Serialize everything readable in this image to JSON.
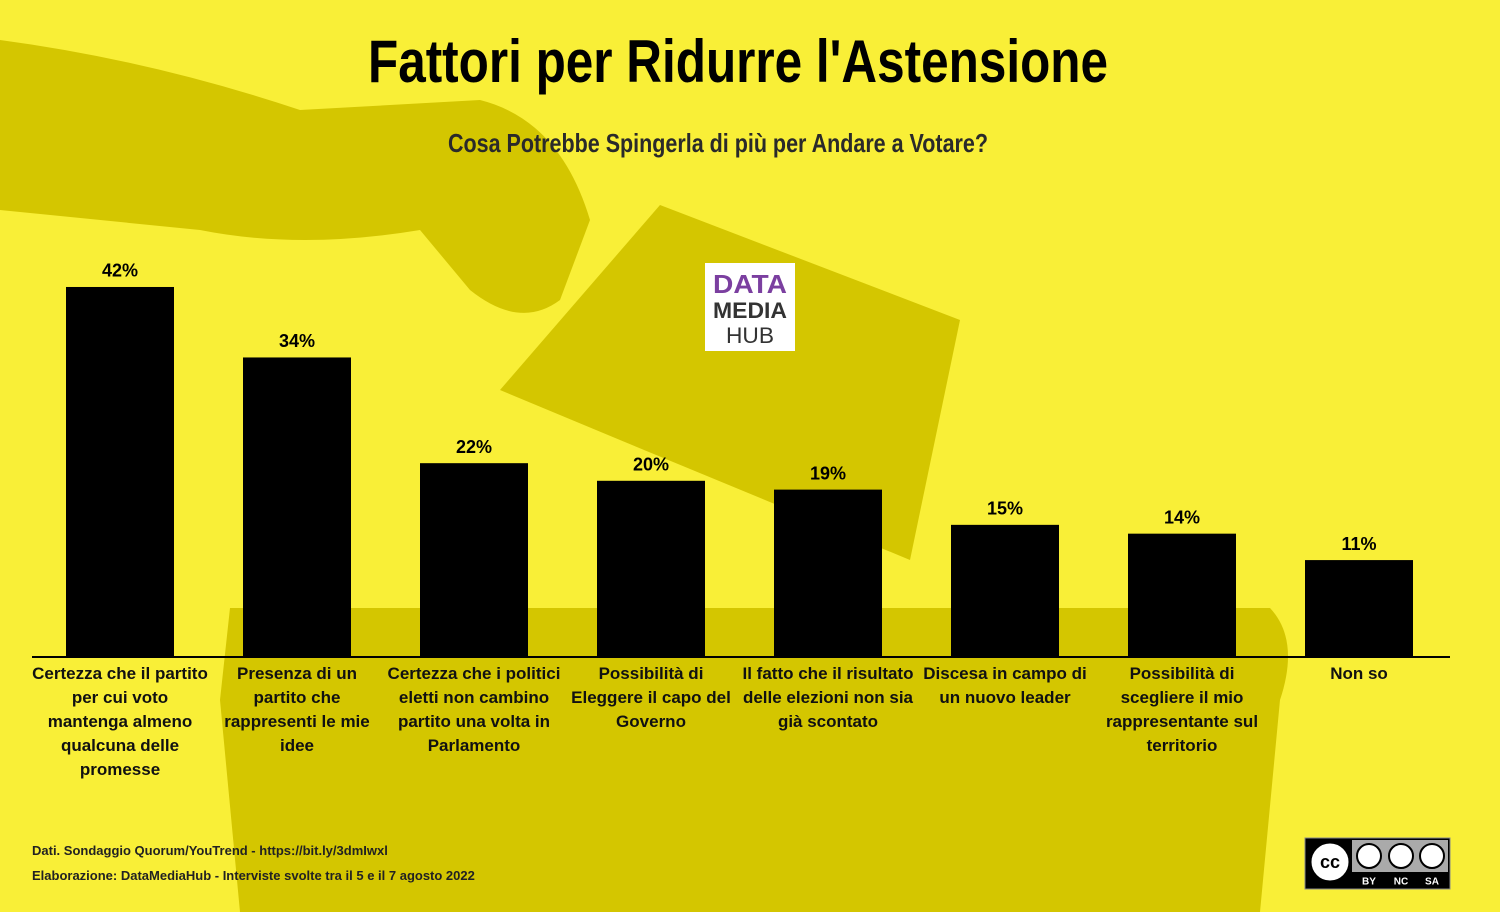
{
  "chart_data": {
    "type": "bar",
    "title": "Fattori per Ridurre l'Astensione",
    "subtitle": "Cosa Potrebbe Spingerla di più per Andare a Votare?",
    "categories": [
      "Certezza che il partito per cui voto mantenga almeno qualcuna delle promesse",
      "Presenza di un partito che rappresenti le mie idee",
      "Certezza che i politici eletti non cambino partito una volta in Parlamento",
      "Possibilità di Eleggere il capo del Governo",
      "Il fatto che il risultato delle elezioni non sia già scontato",
      "Discesa in campo di un nuovo leader",
      "Possibilità di scegliere il mio rappresentante sul territorio",
      "Non so"
    ],
    "values": [
      42,
      34,
      22,
      20,
      19,
      15,
      14,
      11
    ],
    "value_labels": [
      "42%",
      "34%",
      "22%",
      "20%",
      "19%",
      "15%",
      "14%",
      "11%"
    ],
    "color": "#000000"
  },
  "logo": {
    "lines": [
      "DATA",
      "MEDIA",
      "HUB"
    ]
  },
  "footer": {
    "source": "Dati. Sondaggio Quorum/YouTrend - https://bit.ly/3dmIwxl",
    "credit": "Elaborazione: DataMediaHub - Interviste svolte tra il 5 e il 7 agosto 2022"
  },
  "license": {
    "mark": "cc",
    "labels": [
      "BY",
      "NC",
      "SA"
    ]
  }
}
